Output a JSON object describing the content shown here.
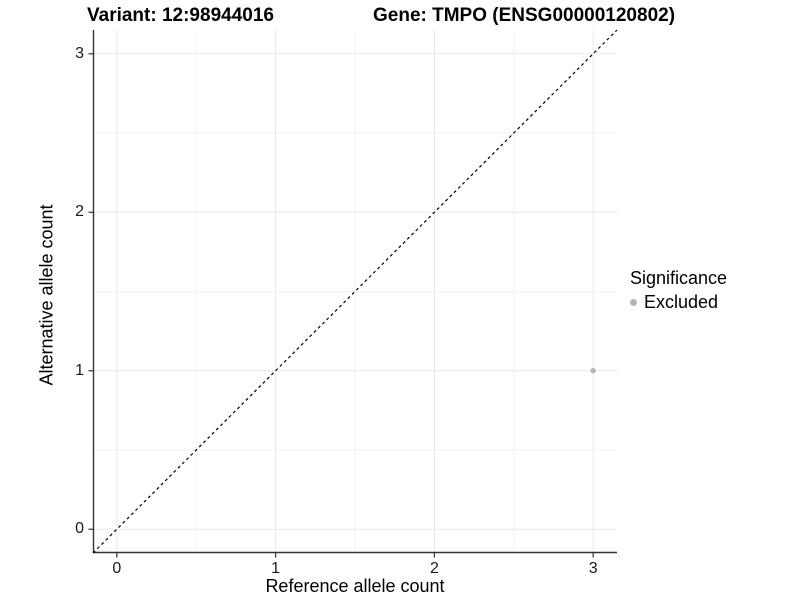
{
  "chart_data": {
    "type": "scatter",
    "titles": [
      "Variant: 12:98944016",
      "Gene: TMPO (ENSG00000120802)"
    ],
    "xlabel": "Reference allele count",
    "ylabel": "Alternative allele count",
    "xlim": [
      -0.15,
      3.15
    ],
    "ylim": [
      -0.15,
      3.15
    ],
    "xticks": [
      0,
      1,
      2,
      3
    ],
    "yticks": [
      0,
      1,
      2,
      3
    ],
    "xticks_minor": [
      0.5,
      1.5,
      2.5
    ],
    "yticks_minor": [
      0.5,
      1.5,
      2.5
    ],
    "grid": true,
    "points": [
      {
        "x": 3,
        "y": 1,
        "series": "Excluded"
      }
    ],
    "reference_line": {
      "slope": 1,
      "intercept": 0,
      "style": "dashed",
      "color": "#000000"
    },
    "legend": {
      "title": "Significance",
      "position": "right",
      "entries": [
        {
          "label": "Excluded",
          "color": "#b5b5b5",
          "marker": "circle"
        }
      ]
    },
    "colors": {
      "grid_major": "#e8e8e8",
      "grid_minor": "#f2f2f2",
      "axis": "#333333",
      "point": "#b5b5b5",
      "text": "#000000"
    }
  }
}
